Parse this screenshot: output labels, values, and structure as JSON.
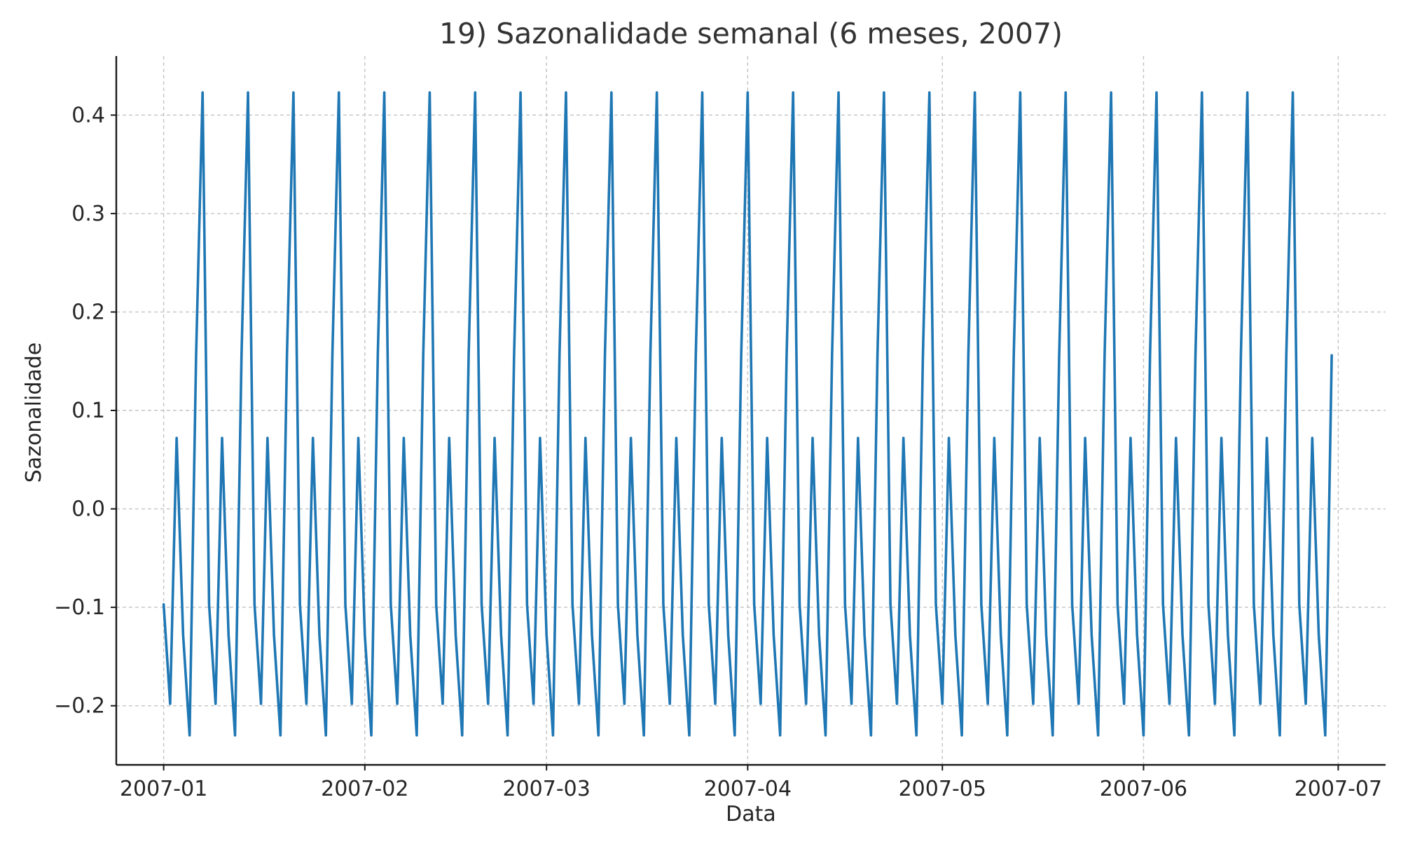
{
  "chart_data": {
    "type": "line",
    "title": "19) Sazonalidade semanal (6 meses, 2007)",
    "xlabel": "Data",
    "ylabel": "Sazonalidade",
    "x_start": "2007-01-01",
    "x_end": "2007-06-30",
    "xlim": [
      "2007-01-01",
      "2007-07-01"
    ],
    "ylim": [
      -0.26,
      0.46
    ],
    "grid": true,
    "legend": "none",
    "x_ticks": [
      "2007-01",
      "2007-02",
      "2007-03",
      "2007-04",
      "2007-05",
      "2007-06",
      "2007-07"
    ],
    "y_ticks": [
      "0.4",
      "0.3",
      "0.2",
      "0.1",
      "0.0",
      "−0.1",
      "−0.2"
    ],
    "series": [
      {
        "color": "#1f77b4",
        "weekly_pattern": [
          -0.097,
          -0.198,
          0.072,
          -0.128,
          -0.23,
          0.156,
          0.423
        ],
        "values": [
          -0.097,
          -0.198,
          0.072,
          -0.128,
          -0.23,
          0.156,
          0.423,
          -0.097,
          -0.198,
          0.072,
          -0.128,
          -0.23,
          0.156,
          0.423,
          -0.097,
          -0.198,
          0.072,
          -0.128,
          -0.23,
          0.156,
          0.423,
          -0.097,
          -0.198,
          0.072,
          -0.128,
          -0.23,
          0.156,
          0.423,
          -0.097,
          -0.198,
          0.072,
          -0.128,
          -0.23,
          0.156,
          0.423,
          -0.097,
          -0.198,
          0.072,
          -0.128,
          -0.23,
          0.156,
          0.423,
          -0.097,
          -0.198,
          0.072,
          -0.128,
          -0.23,
          0.156,
          0.423,
          -0.097,
          -0.198,
          0.072,
          -0.128,
          -0.23,
          0.156,
          0.423,
          -0.097,
          -0.198,
          0.072,
          -0.128,
          -0.23,
          0.156,
          0.423,
          -0.097,
          -0.198,
          0.072,
          -0.128,
          -0.23,
          0.156,
          0.423,
          -0.097,
          -0.198,
          0.072,
          -0.128,
          -0.23,
          0.156,
          0.423,
          -0.097,
          -0.198,
          0.072,
          -0.128,
          -0.23,
          0.156,
          0.423,
          -0.097,
          -0.198,
          0.072,
          -0.128,
          -0.23,
          0.156,
          0.423,
          -0.097,
          -0.198,
          0.072,
          -0.128,
          -0.23,
          0.156,
          0.423,
          -0.097,
          -0.198,
          0.072,
          -0.128,
          -0.23,
          0.156,
          0.423,
          -0.097,
          -0.198,
          0.072,
          -0.128,
          -0.23,
          0.156,
          0.423,
          -0.097,
          -0.198,
          0.072,
          -0.128,
          -0.23,
          0.156,
          0.423,
          -0.097,
          -0.198,
          0.072,
          -0.128,
          -0.23,
          0.156,
          0.423,
          -0.097,
          -0.198,
          0.072,
          -0.128,
          -0.23,
          0.156,
          0.423,
          -0.097,
          -0.198,
          0.072,
          -0.128,
          -0.23,
          0.156,
          0.423,
          -0.097,
          -0.198,
          0.072,
          -0.128,
          -0.23,
          0.156,
          0.423,
          -0.097,
          -0.198,
          0.072,
          -0.128,
          -0.23,
          0.156,
          0.423,
          -0.097,
          -0.198,
          0.072,
          -0.128,
          -0.23,
          0.156,
          0.423,
          -0.097,
          -0.198,
          0.072,
          -0.128,
          -0.23,
          0.156,
          0.423,
          -0.097,
          -0.198,
          0.072,
          -0.128,
          -0.23,
          0.156,
          0.423,
          -0.097,
          -0.198,
          0.072,
          -0.128,
          -0.23,
          0.156
        ]
      }
    ]
  }
}
